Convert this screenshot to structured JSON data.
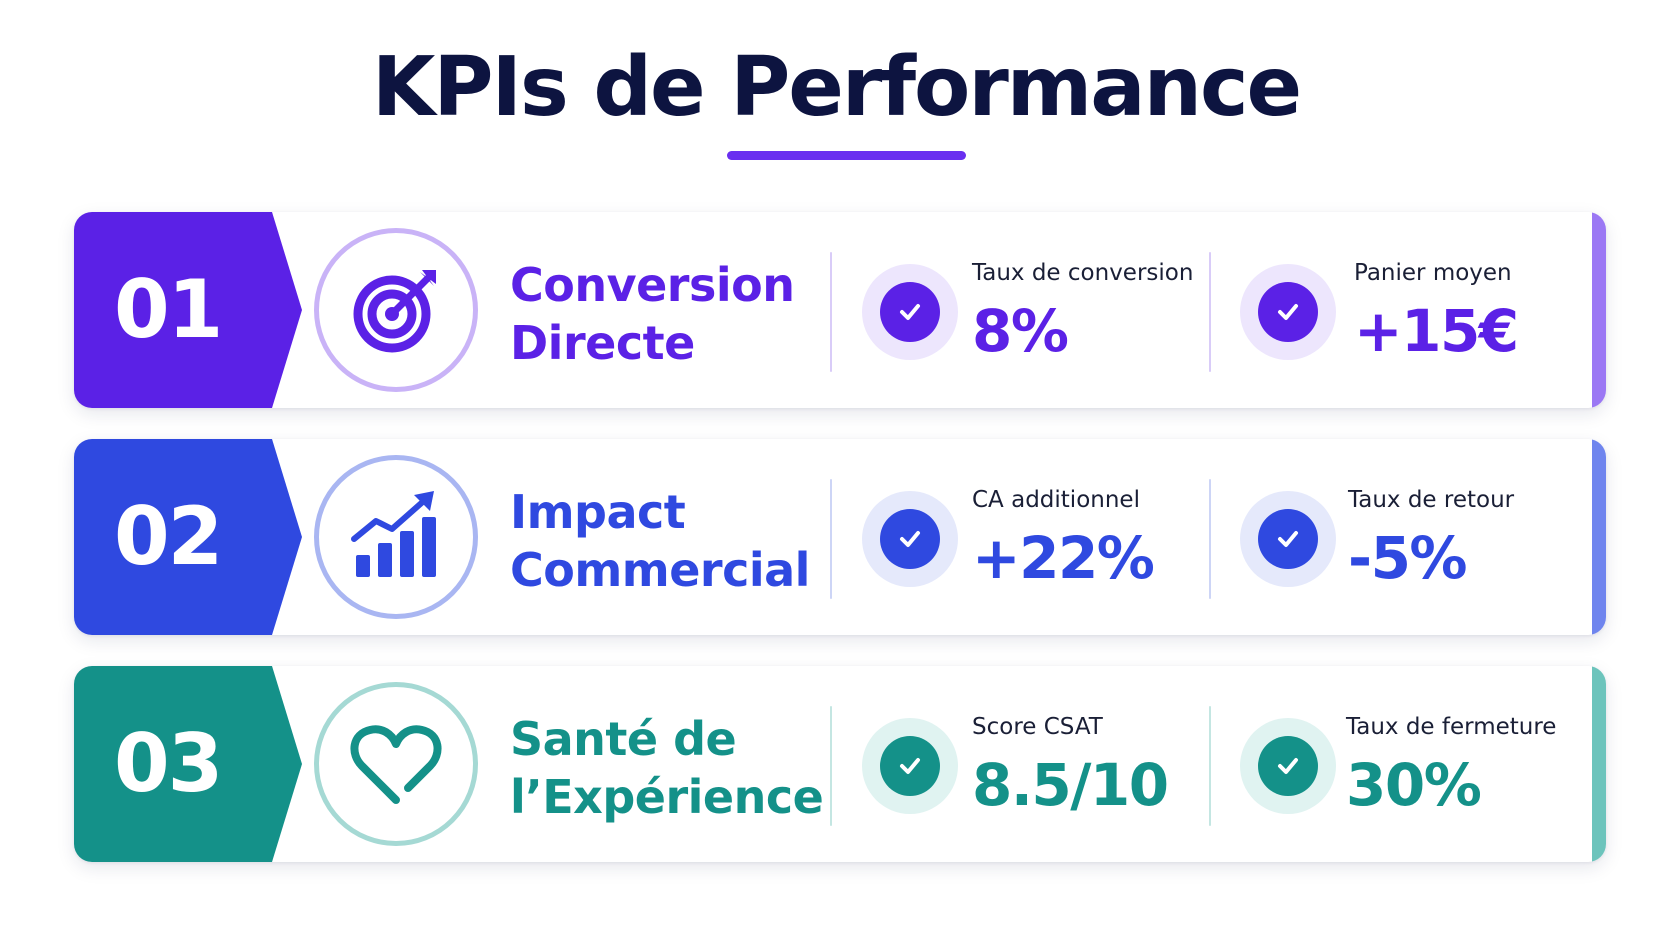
{
  "title": "KPIs de Performance",
  "colors": {
    "title": "#0d1440",
    "underline": "#6a2ff0"
  },
  "cards": [
    {
      "number": "01",
      "title_line1": "Conversion",
      "title_line2": "Directe",
      "icon": "target-icon",
      "color": "#5b21e6",
      "color_light": "#ede6fd",
      "color_ring": "#c9b3f7",
      "color_accent": "#9b78f4",
      "metrics": [
        {
          "label": "Taux de conversion",
          "value": "8%"
        },
        {
          "label": "Panier moyen",
          "value": "+15€"
        }
      ]
    },
    {
      "number": "02",
      "title_line1": "Impact",
      "title_line2": "Commercial",
      "icon": "bar-chart-trend-icon",
      "color": "#2f49e0",
      "color_light": "#e5e9fb",
      "color_ring": "#a9b6f2",
      "color_accent": "#6f85ee",
      "metrics": [
        {
          "label": "CA additionnel",
          "value": "+22%"
        },
        {
          "label": "Taux de retour",
          "value": "-5%"
        }
      ]
    },
    {
      "number": "03",
      "title_line1": "Santé de",
      "title_line2": "l’Expérience",
      "icon": "heart-icon",
      "color": "#149189",
      "color_light": "#e0f3f1",
      "color_ring": "#a5d9d4",
      "color_accent": "#6cc4bc",
      "metrics": [
        {
          "label": "Score CSAT",
          "value": "8.5/10"
        },
        {
          "label": "Taux de fermeture",
          "value": "30%"
        }
      ]
    }
  ]
}
